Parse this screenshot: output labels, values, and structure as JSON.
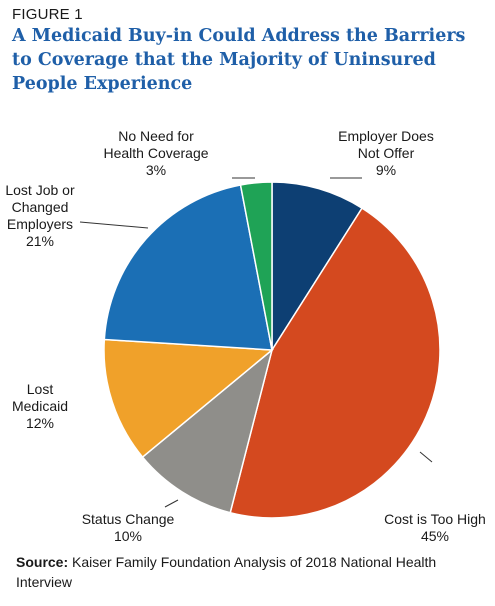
{
  "figure_label": "FIGURE 1",
  "title": "A Medicaid Buy-in Could Address the Barriers to Coverage that the Majority of Uninsured People Experience",
  "source": {
    "label": "Source:",
    "text": " Kaiser Family Foundation Analysis of 2018 National Health Interview"
  },
  "chart_data": {
    "type": "pie",
    "start": "12 o'clock",
    "direction": "clockwise",
    "slices": [
      {
        "label": "Employer Does Not Offer",
        "label_lines": [
          "Employer Does",
          "Not Offer"
        ],
        "value": 9,
        "value_text": "9%",
        "color": "#0d3f73"
      },
      {
        "label": "Cost is Too High",
        "label_lines": [
          "Cost is Too High"
        ],
        "value": 45,
        "value_text": "45%",
        "color": "#d4491f"
      },
      {
        "label": "Status Change",
        "label_lines": [
          "Status Change"
        ],
        "value": 10,
        "value_text": "10%",
        "color": "#8f8e8a"
      },
      {
        "label": "Lost Medicaid",
        "label_lines": [
          "Lost",
          "Medicaid"
        ],
        "value": 12,
        "value_text": "12%",
        "color": "#f0a12a"
      },
      {
        "label": "Lost Job or Changed Employers",
        "label_lines": [
          "Lost Job or",
          "Changed",
          "Employers"
        ],
        "value": 21,
        "value_text": "21%",
        "color": "#1b6fb5"
      },
      {
        "label": "No Need for Health Coverage",
        "label_lines": [
          "No Need for",
          "Health Coverage"
        ],
        "value": 3,
        "value_text": "3%",
        "color": "#1fa356"
      }
    ]
  }
}
